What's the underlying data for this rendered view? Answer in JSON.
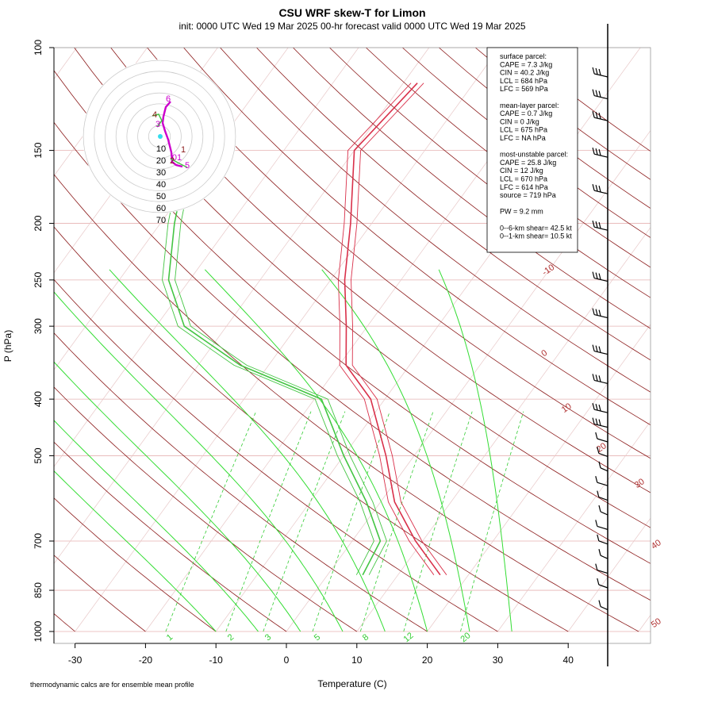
{
  "chart_data": {
    "type": "line",
    "title": "CSU WRF skew-T for Limon",
    "subtitle": "init: 0000 UTC Wed 19 Mar 2025     00-hr forecast valid 0000 UTC Wed 19 Mar 2025",
    "xlabel": "Temperature (C)",
    "ylabel": "P (hPa)",
    "footnote": "thermodynamic calcs are for ensemble mean profile",
    "xlim": [
      -33,
      45
    ],
    "ylim": [
      1000,
      100
    ],
    "y_scale": "log",
    "x_ticks": [
      -30,
      -20,
      -10,
      0,
      10,
      20,
      30,
      40
    ],
    "y_ticks": [
      100,
      150,
      200,
      250,
      300,
      400,
      500,
      700,
      850,
      1000
    ],
    "isotherm_labels": [
      -10,
      0,
      10,
      20,
      30,
      40,
      50
    ],
    "mixing_ratio_labels": [
      "1",
      "2",
      "3",
      "5",
      "8",
      "12",
      "20"
    ],
    "series": [
      {
        "name": "temperature",
        "color": "#d9304a",
        "points": [
          [
            1000,
            null
          ],
          [
            800,
            16
          ],
          [
            700,
            9
          ],
          [
            600,
            2
          ],
          [
            500,
            -4
          ],
          [
            400,
            -12
          ],
          [
            350,
            -19
          ],
          [
            300,
            -23
          ],
          [
            250,
            -28
          ],
          [
            200,
            -33
          ],
          [
            150,
            -40
          ],
          [
            115,
            -38
          ]
        ]
      },
      {
        "name": "dewpoint",
        "color": "#44c544",
        "points": [
          [
            800,
            5
          ],
          [
            700,
            4
          ],
          [
            600,
            -2
          ],
          [
            500,
            -10
          ],
          [
            400,
            -19
          ],
          [
            350,
            -34
          ],
          [
            300,
            -46
          ],
          [
            250,
            -53
          ],
          [
            200,
            -58
          ],
          [
            180,
            -60
          ]
        ]
      }
    ],
    "info_box": [
      "surface parcel:",
      "CAPE = 7.3  J/kg",
      "CIN = 40.2 J/kg",
      "LCL = 684 hPa",
      "LFC = 569 hPa",
      "",
      "mean-layer parcel:",
      "CAPE = 0.7 J/kg",
      "CIN = 0 J/kg",
      "LCL = 675 hPa",
      "LFC = NA hPa",
      "",
      "most-unstable parcel:",
      "CAPE = 25.8 J/kg",
      "CIN = 12 J/kg",
      "LCL = 670 hPa",
      "LFC = 614 hPa",
      "source = 719 hPa",
      "",
      "PW =  9.2 mm",
      "",
      "0--6-km shear= 42.5 kt",
      "0--1-km shear= 10.5 kt"
    ],
    "hodograph_rings": [
      10,
      20,
      30,
      40,
      50,
      60,
      70
    ],
    "hodograph_height_labels": [
      "6",
      "4",
      "3",
      "1",
      "01",
      "2",
      "5"
    ]
  },
  "colors": {
    "isotherm": "#b03030",
    "dry_adiabat": "#8b1a1a",
    "moist_adiabat": "#33dd33",
    "mixing_ratio": "#33cc33",
    "isobar": "#e6b3b3",
    "temperature": "#d9304a",
    "dewpoint": "#44c544",
    "hodograph": "#cc00cc"
  }
}
